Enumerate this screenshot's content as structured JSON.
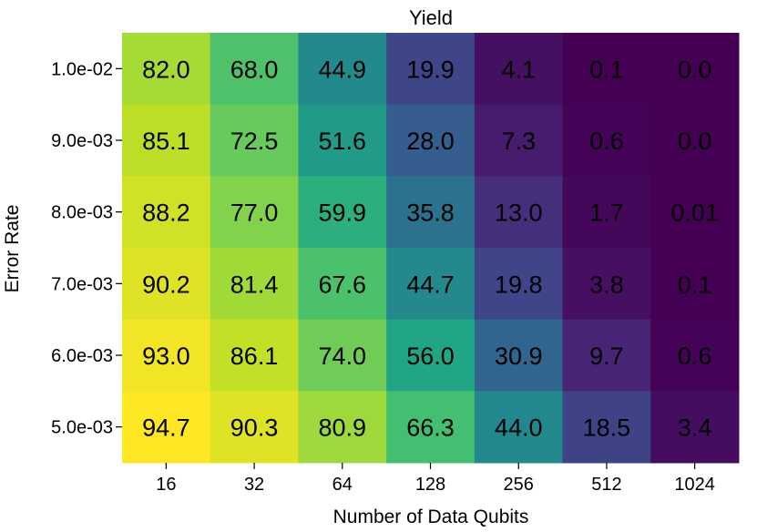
{
  "chart_data": {
    "type": "heatmap",
    "title": "Yield",
    "xlabel": "Number of Data Qubits",
    "ylabel": "Error Rate",
    "x_categories": [
      "16",
      "32",
      "64",
      "128",
      "256",
      "512",
      "1024"
    ],
    "y_categories": [
      "1.0e-02",
      "9.0e-03",
      "8.0e-03",
      "7.0e-03",
      "6.0e-03",
      "5.0e-03"
    ],
    "values": [
      [
        82.0,
        68.0,
        44.9,
        19.9,
        4.1,
        0.1,
        0.0
      ],
      [
        85.1,
        72.5,
        51.6,
        28.0,
        7.3,
        0.6,
        0.0
      ],
      [
        88.2,
        77.0,
        59.9,
        35.8,
        13.0,
        1.7,
        0.01
      ],
      [
        90.2,
        81.4,
        67.6,
        44.7,
        19.8,
        3.8,
        0.1
      ],
      [
        93.0,
        86.1,
        74.0,
        56.0,
        30.9,
        9.7,
        0.6
      ],
      [
        94.7,
        90.3,
        80.9,
        66.3,
        44.0,
        18.5,
        3.4
      ]
    ],
    "cell_labels": [
      [
        "82.0",
        "68.0",
        "44.9",
        "19.9",
        "4.1",
        "0.1",
        "0.0"
      ],
      [
        "85.1",
        "72.5",
        "51.6",
        "28.0",
        "7.3",
        "0.6",
        "0.0"
      ],
      [
        "88.2",
        "77.0",
        "59.9",
        "35.8",
        "13.0",
        "1.7",
        "0.01"
      ],
      [
        "90.2",
        "81.4",
        "67.6",
        "44.7",
        "19.8",
        "3.8",
        "0.1"
      ],
      [
        "93.0",
        "86.1",
        "74.0",
        "56.0",
        "30.9",
        "9.7",
        "0.6"
      ],
      [
        "94.7",
        "90.3",
        "80.9",
        "66.3",
        "44.0",
        "18.5",
        "3.4"
      ]
    ],
    "colormap": "viridis",
    "grid": false,
    "legend": "none"
  }
}
